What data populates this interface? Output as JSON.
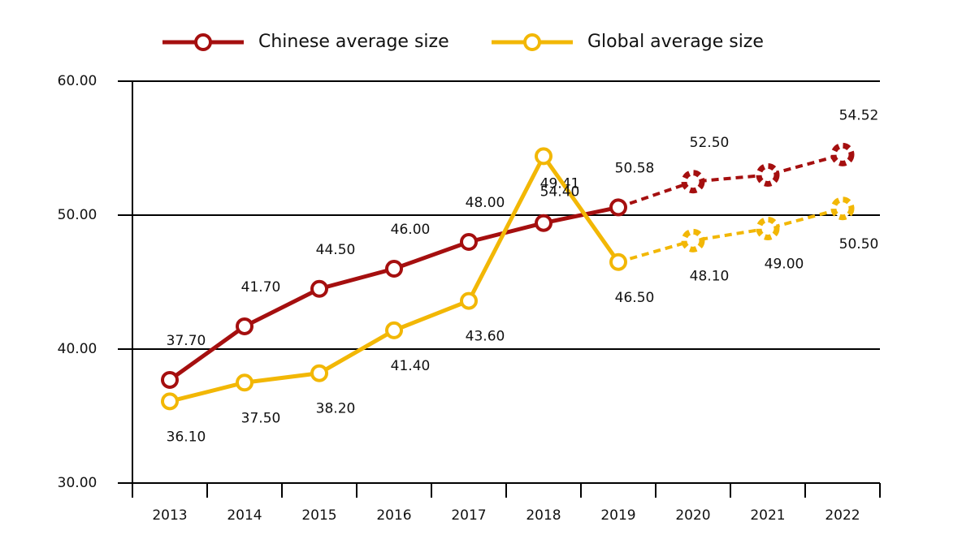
{
  "chart_data": {
    "type": "line",
    "categories": [
      "2013",
      "2014",
      "2015",
      "2016",
      "2017",
      "2018",
      "2019",
      "2020",
      "2021",
      "2022"
    ],
    "series": [
      {
        "name": "Chinese average size",
        "color": "#a50f0f",
        "values": [
          37.7,
          41.7,
          44.5,
          46.0,
          48.0,
          49.41,
          50.58,
          52.5,
          53.0,
          54.52
        ],
        "value_labels": [
          "37.70",
          "41.70",
          "44.50",
          "46.00",
          "48.00",
          "49.41",
          "50.58",
          "52.50",
          null,
          "54.52"
        ]
      },
      {
        "name": "Global average size",
        "color": "#f2b705",
        "values": [
          36.1,
          37.5,
          38.2,
          41.4,
          43.6,
          54.4,
          46.5,
          48.1,
          49.0,
          50.5
        ],
        "value_labels": [
          "36.10",
          "37.50",
          "38.20",
          "41.40",
          "43.60",
          "54.40",
          "46.50",
          "48.10",
          "49.00",
          "50.50"
        ]
      }
    ],
    "dashed_from": 6,
    "ylim": [
      30,
      60
    ],
    "yticks": [
      {
        "value": 30,
        "label": "30.00"
      },
      {
        "value": 40,
        "label": "40.00"
      },
      {
        "value": 50,
        "label": "50.00"
      },
      {
        "value": 60,
        "label": "60.00"
      }
    ],
    "grid": true,
    "legend": "top"
  }
}
